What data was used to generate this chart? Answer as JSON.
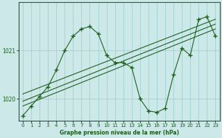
{
  "title": "Graphe pression niveau de la mer (hPa)",
  "bg_color": "#cde8e8",
  "grid_color": "#9fcfcf",
  "line_color": "#1a5c1a",
  "xlim": [
    -0.5,
    23.5
  ],
  "ylim": [
    1019.55,
    1022.0
  ],
  "yticks": [
    1020,
    1021
  ],
  "xticks": [
    0,
    1,
    2,
    3,
    4,
    5,
    6,
    7,
    8,
    9,
    10,
    11,
    12,
    13,
    14,
    15,
    16,
    17,
    18,
    19,
    20,
    21,
    22,
    23
  ],
  "series1_x": [
    0,
    1,
    2,
    3,
    4,
    5,
    6,
    7,
    8,
    9,
    10,
    11,
    12,
    13,
    14,
    15,
    16,
    17,
    18,
    19,
    20,
    21,
    22,
    23
  ],
  "series1_y": [
    1019.65,
    1019.85,
    1020.05,
    1020.25,
    1020.6,
    1021.0,
    1021.3,
    1021.45,
    1021.5,
    1021.35,
    1020.9,
    1020.75,
    1020.75,
    1020.65,
    1020.0,
    1019.75,
    1019.72,
    1019.8,
    1020.5,
    1021.05,
    1020.9,
    1021.65,
    1021.7,
    1021.3
  ],
  "series2_x": [
    0,
    23
  ],
  "series2_y": [
    1019.85,
    1021.45
  ],
  "series3_x": [
    0,
    23
  ],
  "series3_y": [
    1019.95,
    1021.55
  ],
  "series4_x": [
    0,
    23
  ],
  "series4_y": [
    1020.1,
    1021.65
  ],
  "marker": "+",
  "marker_size": 4,
  "fontsize_ticks": 5,
  "fontsize_label": 5.5
}
